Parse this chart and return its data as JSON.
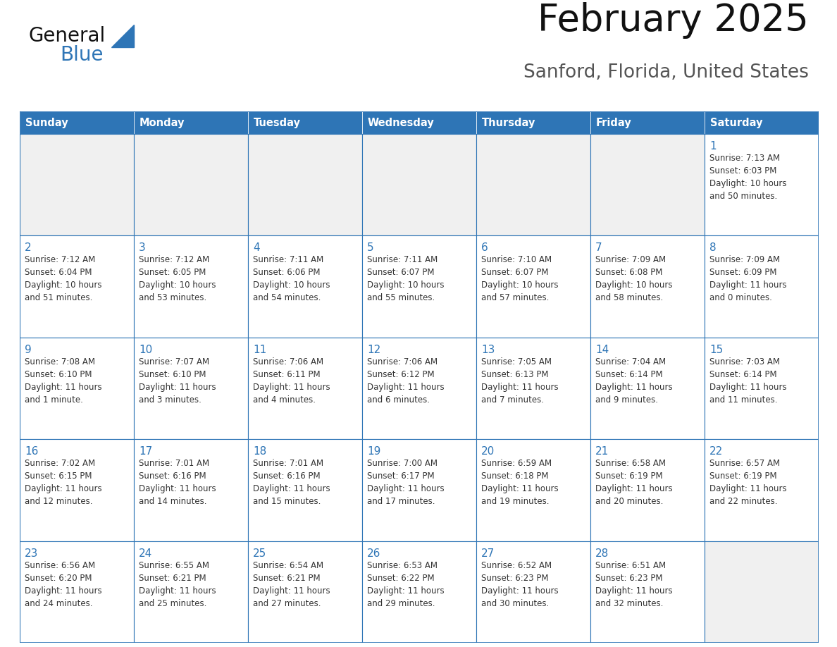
{
  "title": "February 2025",
  "subtitle": "Sanford, Florida, United States",
  "header_color": "#2E75B6",
  "header_text_color": "#FFFFFF",
  "cell_bg_color": "#FFFFFF",
  "empty_cell_bg": "#F0F0F0",
  "cell_border_color": "#2E75B6",
  "day_number_color": "#2E75B6",
  "text_color": "#333333",
  "separator_color": "#2E75B6",
  "days_of_week": [
    "Sunday",
    "Monday",
    "Tuesday",
    "Wednesday",
    "Thursday",
    "Friday",
    "Saturday"
  ],
  "calendar_data": [
    [
      null,
      null,
      null,
      null,
      null,
      null,
      {
        "day": 1,
        "sunrise": "7:13 AM",
        "sunset": "6:03 PM",
        "daylight": "10 hours",
        "daylight2": "and 50 minutes."
      }
    ],
    [
      {
        "day": 2,
        "sunrise": "7:12 AM",
        "sunset": "6:04 PM",
        "daylight": "10 hours",
        "daylight2": "and 51 minutes."
      },
      {
        "day": 3,
        "sunrise": "7:12 AM",
        "sunset": "6:05 PM",
        "daylight": "10 hours",
        "daylight2": "and 53 minutes."
      },
      {
        "day": 4,
        "sunrise": "7:11 AM",
        "sunset": "6:06 PM",
        "daylight": "10 hours",
        "daylight2": "and 54 minutes."
      },
      {
        "day": 5,
        "sunrise": "7:11 AM",
        "sunset": "6:07 PM",
        "daylight": "10 hours",
        "daylight2": "and 55 minutes."
      },
      {
        "day": 6,
        "sunrise": "7:10 AM",
        "sunset": "6:07 PM",
        "daylight": "10 hours",
        "daylight2": "and 57 minutes."
      },
      {
        "day": 7,
        "sunrise": "7:09 AM",
        "sunset": "6:08 PM",
        "daylight": "10 hours",
        "daylight2": "and 58 minutes."
      },
      {
        "day": 8,
        "sunrise": "7:09 AM",
        "sunset": "6:09 PM",
        "daylight": "11 hours",
        "daylight2": "and 0 minutes."
      }
    ],
    [
      {
        "day": 9,
        "sunrise": "7:08 AM",
        "sunset": "6:10 PM",
        "daylight": "11 hours",
        "daylight2": "and 1 minute."
      },
      {
        "day": 10,
        "sunrise": "7:07 AM",
        "sunset": "6:10 PM",
        "daylight": "11 hours",
        "daylight2": "and 3 minutes."
      },
      {
        "day": 11,
        "sunrise": "7:06 AM",
        "sunset": "6:11 PM",
        "daylight": "11 hours",
        "daylight2": "and 4 minutes."
      },
      {
        "day": 12,
        "sunrise": "7:06 AM",
        "sunset": "6:12 PM",
        "daylight": "11 hours",
        "daylight2": "and 6 minutes."
      },
      {
        "day": 13,
        "sunrise": "7:05 AM",
        "sunset": "6:13 PM",
        "daylight": "11 hours",
        "daylight2": "and 7 minutes."
      },
      {
        "day": 14,
        "sunrise": "7:04 AM",
        "sunset": "6:14 PM",
        "daylight": "11 hours",
        "daylight2": "and 9 minutes."
      },
      {
        "day": 15,
        "sunrise": "7:03 AM",
        "sunset": "6:14 PM",
        "daylight": "11 hours",
        "daylight2": "and 11 minutes."
      }
    ],
    [
      {
        "day": 16,
        "sunrise": "7:02 AM",
        "sunset": "6:15 PM",
        "daylight": "11 hours",
        "daylight2": "and 12 minutes."
      },
      {
        "day": 17,
        "sunrise": "7:01 AM",
        "sunset": "6:16 PM",
        "daylight": "11 hours",
        "daylight2": "and 14 minutes."
      },
      {
        "day": 18,
        "sunrise": "7:01 AM",
        "sunset": "6:16 PM",
        "daylight": "11 hours",
        "daylight2": "and 15 minutes."
      },
      {
        "day": 19,
        "sunrise": "7:00 AM",
        "sunset": "6:17 PM",
        "daylight": "11 hours",
        "daylight2": "and 17 minutes."
      },
      {
        "day": 20,
        "sunrise": "6:59 AM",
        "sunset": "6:18 PM",
        "daylight": "11 hours",
        "daylight2": "and 19 minutes."
      },
      {
        "day": 21,
        "sunrise": "6:58 AM",
        "sunset": "6:19 PM",
        "daylight": "11 hours",
        "daylight2": "and 20 minutes."
      },
      {
        "day": 22,
        "sunrise": "6:57 AM",
        "sunset": "6:19 PM",
        "daylight": "11 hours",
        "daylight2": "and 22 minutes."
      }
    ],
    [
      {
        "day": 23,
        "sunrise": "6:56 AM",
        "sunset": "6:20 PM",
        "daylight": "11 hours",
        "daylight2": "and 24 minutes."
      },
      {
        "day": 24,
        "sunrise": "6:55 AM",
        "sunset": "6:21 PM",
        "daylight": "11 hours",
        "daylight2": "and 25 minutes."
      },
      {
        "day": 25,
        "sunrise": "6:54 AM",
        "sunset": "6:21 PM",
        "daylight": "11 hours",
        "daylight2": "and 27 minutes."
      },
      {
        "day": 26,
        "sunrise": "6:53 AM",
        "sunset": "6:22 PM",
        "daylight": "11 hours",
        "daylight2": "and 29 minutes."
      },
      {
        "day": 27,
        "sunrise": "6:52 AM",
        "sunset": "6:23 PM",
        "daylight": "11 hours",
        "daylight2": "and 30 minutes."
      },
      {
        "day": 28,
        "sunrise": "6:51 AM",
        "sunset": "6:23 PM",
        "daylight": "11 hours",
        "daylight2": "and 32 minutes."
      },
      null
    ]
  ]
}
